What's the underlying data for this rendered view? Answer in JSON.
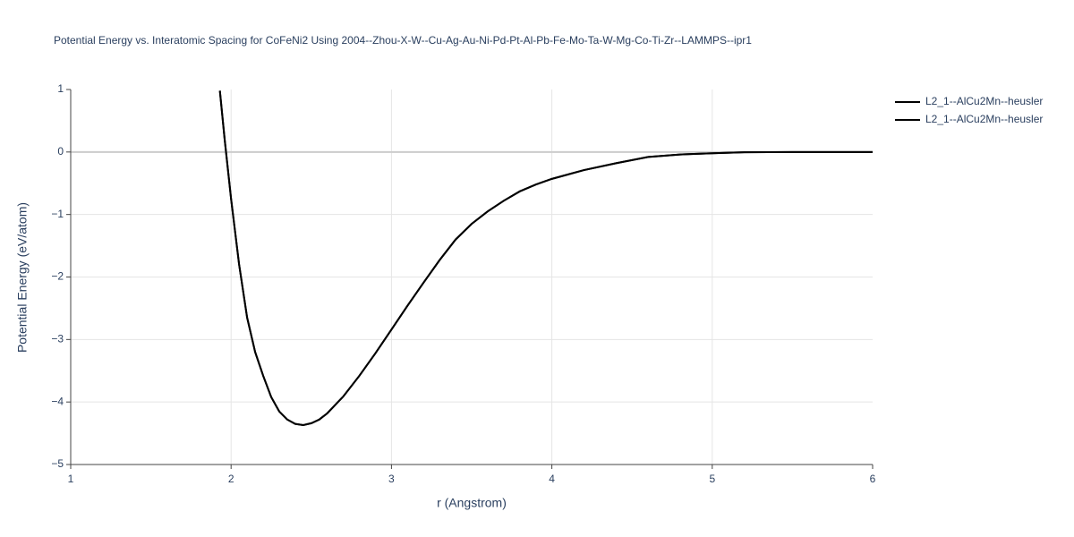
{
  "chart_data": {
    "type": "line",
    "title": "Potential Energy vs. Interatomic Spacing for CoFeNi2 Using 2004--Zhou-X-W--Cu-Ag-Au-Ni-Pd-Pt-Al-Pb-Fe-Mo-Ta-W-Mg-Co-Ti-Zr--LAMMPS--ipr1",
    "xlabel": "r (Angstrom)",
    "ylabel": "Potential Energy (eV/atom)",
    "x": [
      1.93,
      1.96,
      2.0,
      2.05,
      2.1,
      2.15,
      2.2,
      2.25,
      2.3,
      2.35,
      2.4,
      2.45,
      2.5,
      2.55,
      2.6,
      2.7,
      2.8,
      2.9,
      3.0,
      3.1,
      3.2,
      3.3,
      3.4,
      3.5,
      3.6,
      3.7,
      3.8,
      3.9,
      4.0,
      4.2,
      4.4,
      4.6,
      4.8,
      5.0,
      5.2,
      5.5,
      6.0
    ],
    "series": [
      {
        "name": "L2_1--AlCu2Mn--heusler",
        "color": "#000000",
        "values": [
          0.98,
          0.2,
          -0.75,
          -1.8,
          -2.65,
          -3.2,
          -3.58,
          -3.92,
          -4.15,
          -4.28,
          -4.35,
          -4.37,
          -4.34,
          -4.28,
          -4.18,
          -3.91,
          -3.58,
          -3.22,
          -2.84,
          -2.46,
          -2.09,
          -1.73,
          -1.4,
          -1.15,
          -0.95,
          -0.78,
          -0.63,
          -0.52,
          -0.43,
          -0.29,
          -0.18,
          -0.08,
          -0.04,
          -0.02,
          -0.005,
          0,
          0
        ]
      },
      {
        "name": "L2_1--AlCu2Mn--heusler",
        "color": "#000000",
        "values": [
          0.98,
          0.2,
          -0.75,
          -1.8,
          -2.65,
          -3.2,
          -3.58,
          -3.92,
          -4.15,
          -4.28,
          -4.35,
          -4.37,
          -4.34,
          -4.28,
          -4.18,
          -3.91,
          -3.58,
          -3.22,
          -2.84,
          -2.46,
          -2.09,
          -1.73,
          -1.4,
          -1.15,
          -0.95,
          -0.78,
          -0.63,
          -0.52,
          -0.43,
          -0.29,
          -0.18,
          -0.08,
          -0.04,
          -0.02,
          -0.005,
          0,
          0
        ]
      }
    ],
    "xlim": [
      1,
      6
    ],
    "xticks": [
      1,
      2,
      3,
      4,
      5,
      6
    ],
    "ylim": [
      -5,
      1
    ],
    "yticks": [
      {
        "value": -5,
        "label": "−5"
      },
      {
        "value": -4,
        "label": "−4"
      },
      {
        "value": -3,
        "label": "−3"
      },
      {
        "value": -2,
        "label": "−2"
      },
      {
        "value": -1,
        "label": "−1"
      },
      0,
      1
    ],
    "grid": true,
    "legend": "right"
  }
}
